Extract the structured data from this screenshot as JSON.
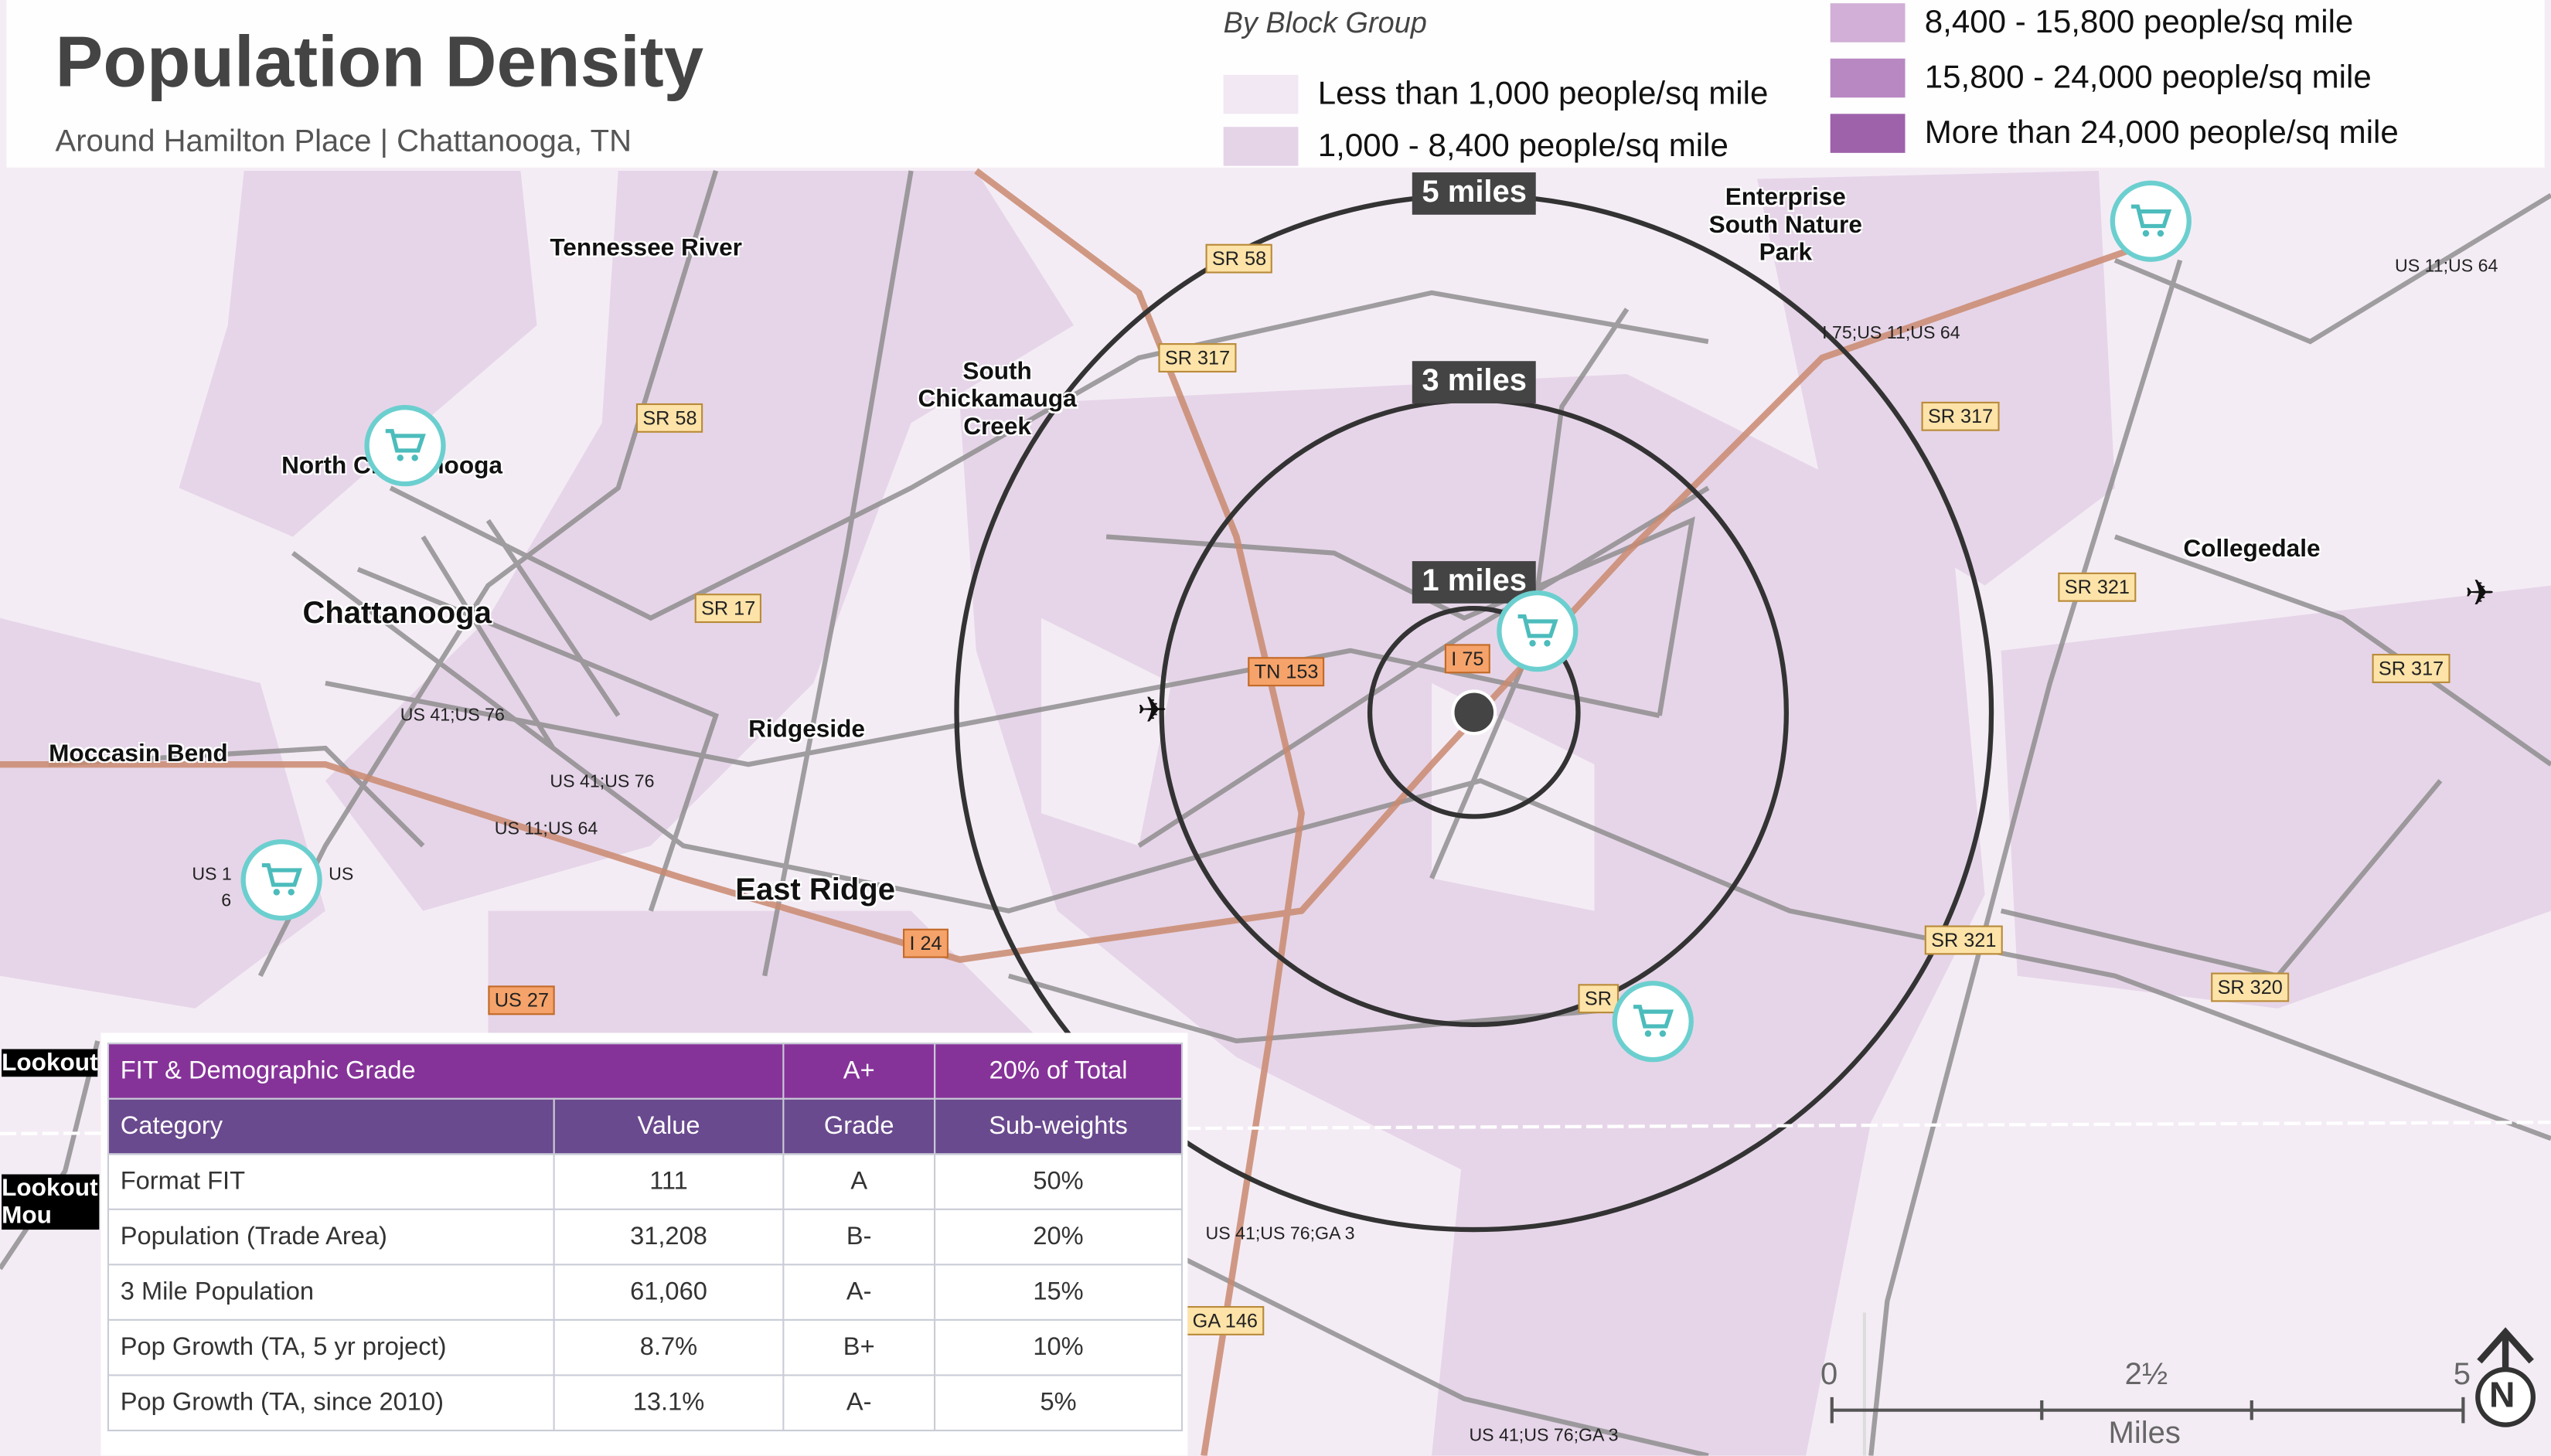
{
  "header": {
    "title": "Population Density",
    "subtitle": "Around Hamilton Place | Chattanooga, TN"
  },
  "legend": {
    "heading": "By Block Group",
    "items": [
      {
        "label": "Less than 1,000 people/sq mile",
        "color": "#f1e8f3"
      },
      {
        "label": "1,000 - 8,400 people/sq mile",
        "color": "#e5d4e8"
      },
      {
        "label": "8,400 - 15,800 people/sq mile",
        "color": "#d1afd6"
      },
      {
        "label": "15,800 - 24,000 people/sq mile",
        "color": "#b888c2"
      },
      {
        "label": "More than 24,000 people/sq mile",
        "color": "#9e62ab"
      }
    ]
  },
  "rings": [
    "5 miles",
    "3 miles",
    "1 miles"
  ],
  "places": [
    "Tennessee River",
    "North Chattanooga",
    "Chattanooga",
    "Moccasin Bend",
    "Ridgeside",
    "East Ridge",
    "South Chickamauga Creek",
    "Enterprise South Nature Park",
    "Collegedale",
    "Lookout",
    "Lookout Mou"
  ],
  "shields": [
    "SR 58",
    "SR 317",
    "SR 58",
    "SR 17",
    "TN 153",
    "I 75",
    "I 24",
    "US 27",
    "SR 317",
    "SR 321",
    "SR 317",
    "SR 321",
    "SR 320",
    "GA 146",
    "SR"
  ],
  "route_labels": [
    "US 41;US 76",
    "US 41;US 76",
    "US 11;US 64",
    "I 75;US 11;US 64",
    "US 11;US 64",
    "US 41;US 76;GA 3",
    "US 41;US 76;GA 3",
    "US 1",
    "US",
    "6"
  ],
  "table": {
    "header": [
      "FIT & Demographic Grade",
      "A+",
      "20% of Total"
    ],
    "columns": [
      "Category",
      "Value",
      "Grade",
      "Sub-weights"
    ],
    "rows": [
      [
        "Format FIT",
        "111",
        "A",
        "50%"
      ],
      [
        "Population (Trade Area)",
        "31,208",
        "B-",
        "20%"
      ],
      [
        "3 Mile Population",
        "61,060",
        "A-",
        "15%"
      ],
      [
        "Pop Growth (TA, 5 yr project)",
        "8.7%",
        "B+",
        "10%"
      ],
      [
        "Pop Growth (TA, since 2010)",
        "13.1%",
        "A-",
        "5%"
      ]
    ]
  },
  "scale_bar": {
    "ticks": [
      "0",
      "2½",
      "5"
    ],
    "unit": "Miles"
  },
  "north_arrow": "N"
}
